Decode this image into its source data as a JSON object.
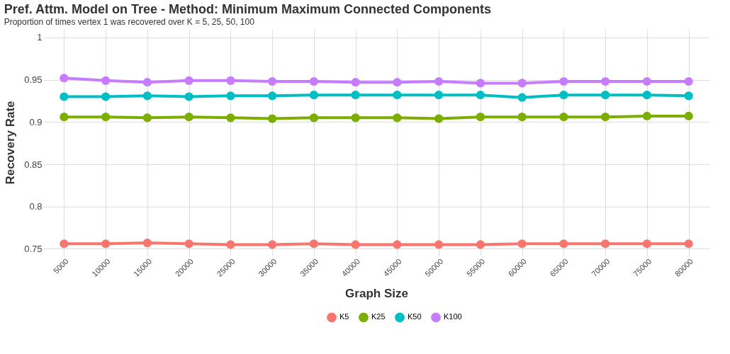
{
  "chart_data": {
    "type": "line",
    "title": "Pref. Attm. Model on Tree - Method: Minimum Maximum Connected Components",
    "subtitle": "Proportion of times vertex 1 was recovered over K = 5, 25, 50, 100",
    "xlabel": "Graph Size",
    "ylabel": "Recovery Rate",
    "categories": [
      "5000",
      "10000",
      "15000",
      "20000",
      "25000",
      "30000",
      "35000",
      "40000",
      "45000",
      "50000",
      "55000",
      "60000",
      "65000",
      "70000",
      "75000",
      "80000"
    ],
    "series": [
      {
        "name": "K5",
        "color": "#f8766d",
        "values": [
          0.756,
          0.756,
          0.757,
          0.756,
          0.755,
          0.755,
          0.756,
          0.755,
          0.755,
          0.755,
          0.755,
          0.756,
          0.756,
          0.756,
          0.756,
          0.756
        ]
      },
      {
        "name": "K25",
        "color": "#7cae00",
        "values": [
          0.906,
          0.906,
          0.905,
          0.906,
          0.905,
          0.904,
          0.905,
          0.905,
          0.905,
          0.904,
          0.906,
          0.906,
          0.906,
          0.906,
          0.907,
          0.907
        ]
      },
      {
        "name": "K50",
        "color": "#00bfc4",
        "values": [
          0.93,
          0.93,
          0.931,
          0.93,
          0.931,
          0.931,
          0.932,
          0.932,
          0.932,
          0.932,
          0.932,
          0.929,
          0.932,
          0.932,
          0.932,
          0.931
        ]
      },
      {
        "name": "K100",
        "color": "#c77cff",
        "values": [
          0.952,
          0.949,
          0.947,
          0.949,
          0.949,
          0.948,
          0.948,
          0.947,
          0.947,
          0.948,
          0.946,
          0.946,
          0.948,
          0.948,
          0.948,
          0.948
        ]
      }
    ],
    "ylim": [
      0.742,
      1.01
    ],
    "yticks": [
      {
        "value": 0.75,
        "label": "0.75"
      },
      {
        "value": 0.8,
        "label": "0.8"
      },
      {
        "value": 0.85,
        "label": "0.85"
      },
      {
        "value": 0.9,
        "label": "0.9"
      },
      {
        "value": 0.95,
        "label": "0.95"
      },
      {
        "value": 1,
        "label": "1"
      }
    ],
    "grid": true,
    "legend": "bottom",
    "marker": "circle",
    "line_style": "solid"
  }
}
